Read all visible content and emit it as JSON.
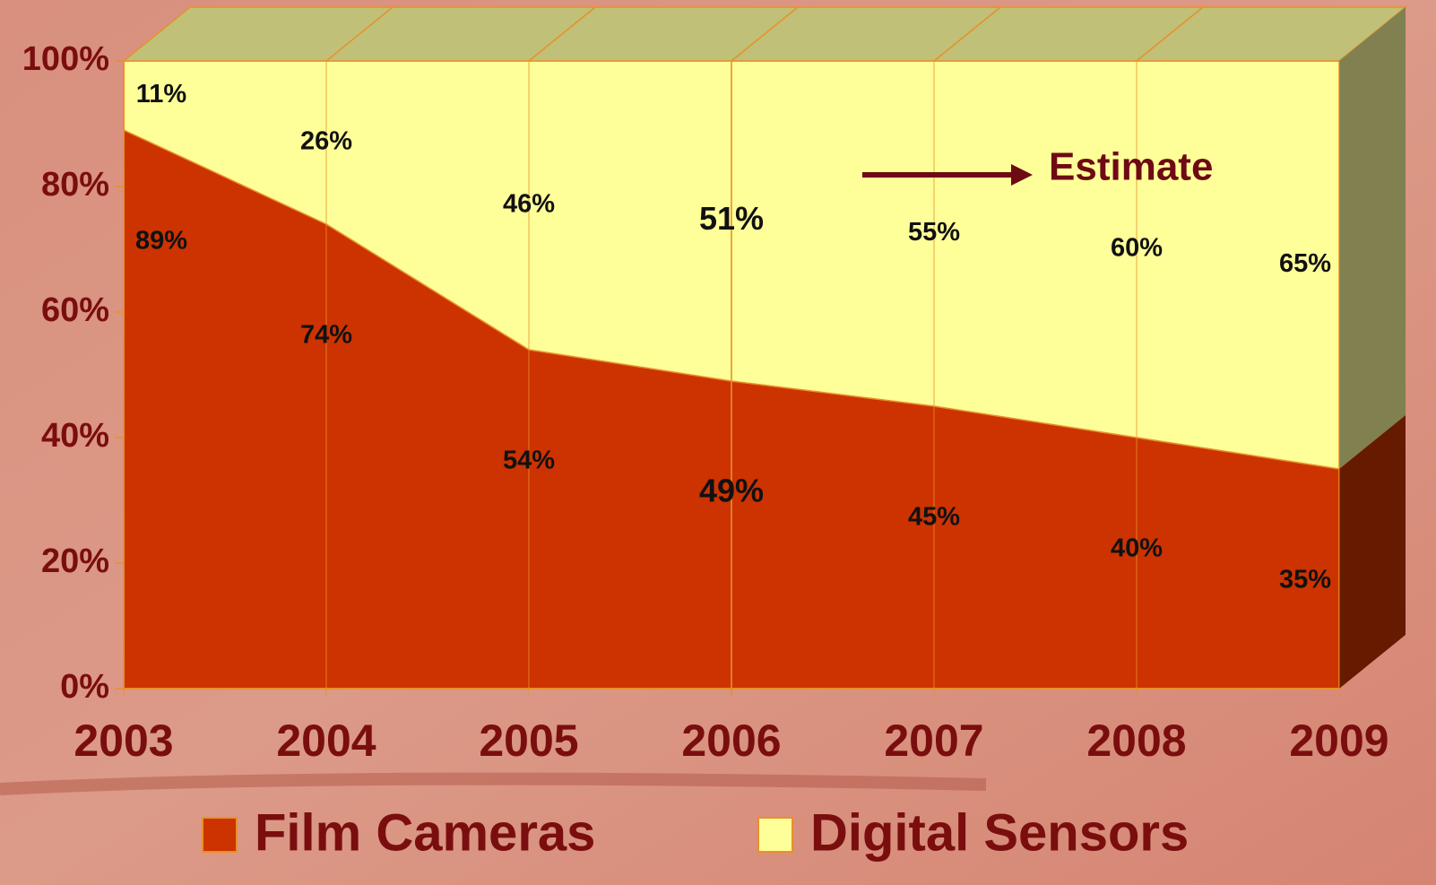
{
  "chart_data": {
    "type": "stacked_area",
    "categories": [
      "2003",
      "2004",
      "2005",
      "2006",
      "2007",
      "2008",
      "2009"
    ],
    "series": [
      {
        "name": "Film Cameras",
        "color": "#cc3300",
        "values": [
          89,
          74,
          54,
          49,
          45,
          40,
          35
        ],
        "value_labels": [
          "89%",
          "74%",
          "54%",
          "49%",
          "45%",
          "40%",
          "35%"
        ]
      },
      {
        "name": "Digital Sensors",
        "color": "#ffff99",
        "values": [
          11,
          26,
          46,
          51,
          55,
          60,
          65
        ],
        "value_labels": [
          "11%",
          "26%",
          "46%",
          "51%",
          "55%",
          "60%",
          "65%"
        ]
      }
    ],
    "ylim": [
      0,
      100
    ],
    "yticks": [
      {
        "value": 0,
        "label": "0%"
      },
      {
        "value": 20,
        "label": "20%"
      },
      {
        "value": 40,
        "label": "40%"
      },
      {
        "value": 60,
        "label": "60%"
      },
      {
        "value": 80,
        "label": "80%"
      },
      {
        "value": 100,
        "label": "100%"
      }
    ],
    "annotation": "Estimate",
    "legend": "bottom"
  }
}
